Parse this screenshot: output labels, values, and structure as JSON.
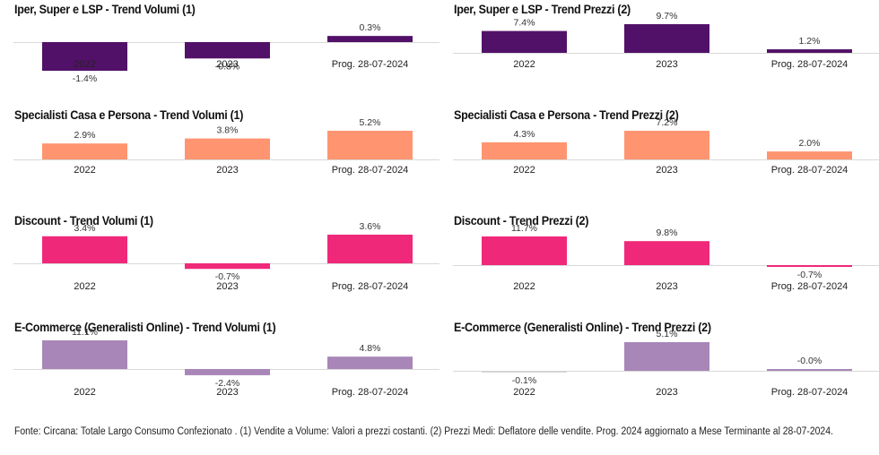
{
  "chart_data": [
    {
      "type": "bar",
      "title": "Iper, Super e LSP - Trend Volumi (1)",
      "categories": [
        "2022",
        "2023",
        "Prog. 28-07-2024"
      ],
      "values": [
        -1.4,
        -0.8,
        0.3
      ],
      "labels": [
        "-1.4%",
        "-0.8%",
        "0.3%"
      ],
      "color": "#521168",
      "scale": 8.3,
      "xlabel": "",
      "ylabel": ""
    },
    {
      "type": "bar",
      "title": "Iper, Super e LSP - Trend Prezzi (2)",
      "categories": [
        "2022",
        "2023",
        "Prog. 28-07-2024"
      ],
      "values": [
        7.4,
        9.7,
        1.2
      ],
      "labels": [
        "7.4%",
        "9.7%",
        "1.2%"
      ],
      "color": "#521168",
      "scale": 1.55,
      "xlabel": "",
      "ylabel": ""
    },
    {
      "type": "bar",
      "title": "Specialisti Casa e Persona - Trend Volumi (1)",
      "categories": [
        "2022",
        "2023",
        "Prog. 28-07-2024"
      ],
      "values": [
        2.9,
        3.8,
        5.2
      ],
      "labels": [
        "2.9%",
        "3.8%",
        "5.2%"
      ],
      "color": "#FF9570",
      "scale": 2.8,
      "xlabel": "",
      "ylabel": ""
    },
    {
      "type": "bar",
      "title": "Specialisti Casa e Persona - Trend Prezzi (2)",
      "categories": [
        "2022",
        "2023",
        "Prog. 28-07-2024"
      ],
      "values": [
        4.3,
        7.2,
        2.0
      ],
      "labels": [
        "4.3%",
        "7.2%",
        "2.0%"
      ],
      "color": "#FF9570",
      "scale": 2.05,
      "xlabel": "",
      "ylabel": ""
    },
    {
      "type": "bar",
      "title": "Discount - Trend Volumi (1)",
      "categories": [
        "2022",
        "2023",
        "Prog. 28-07-2024"
      ],
      "values": [
        3.4,
        -0.7,
        3.6
      ],
      "labels": [
        "3.4%",
        "-0.7%",
        "3.6%"
      ],
      "color": "#F0287A",
      "scale": 3.55,
      "xlabel": "",
      "ylabel": ""
    },
    {
      "type": "bar",
      "title": "Discount - Trend Prezzi (2)",
      "categories": [
        "2022",
        "2023",
        "Prog. 28-07-2024"
      ],
      "values": [
        11.7,
        9.8,
        -0.7
      ],
      "labels": [
        "11.7%",
        "9.8%",
        "-0.7%"
      ],
      "color": "#F0287A",
      "scale": 1.2,
      "xlabel": "",
      "ylabel": ""
    },
    {
      "type": "bar",
      "title": "E-Commerce (Generalisti Online) - Trend Volumi (1)",
      "categories": [
        "2022",
        "2023",
        "Prog. 28-07-2024"
      ],
      "values": [
        11.1,
        -2.4,
        4.8
      ],
      "labels": [
        "11.1%",
        "-2.4%",
        "4.8%"
      ],
      "color": "#A886B8",
      "scale": 1.1,
      "xlabel": "",
      "ylabel": ""
    },
    {
      "type": "bar",
      "title": "E-Commerce (Generalisti Online) - Trend Prezzi (2)",
      "categories": [
        "2022",
        "2023",
        "Prog. 28-07-2024"
      ],
      "values": [
        -0.1,
        5.1,
        -0.0
      ],
      "labels": [
        "-0.1%",
        "5.1%",
        "-0.0%"
      ],
      "color": "#A886B8",
      "scale": 2.6,
      "xlabel": "",
      "ylabel": ""
    }
  ],
  "footer": "Fonte: Circana: Totale Largo Consumo Confezionato . (1) Vendite a Volume: Valori a prezzi costanti. (2) Prezzi Medi: Deflatore delle vendite. Prog. 2024 aggiornato a Mese Terminante al 28-07-2024."
}
